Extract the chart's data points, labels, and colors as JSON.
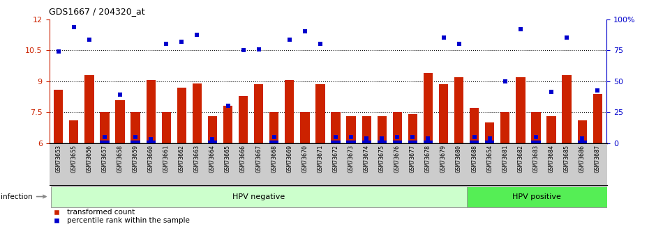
{
  "title": "GDS1667 / 204320_at",
  "samples": [
    "GSM73653",
    "GSM73655",
    "GSM73656",
    "GSM73657",
    "GSM73658",
    "GSM73659",
    "GSM73660",
    "GSM73661",
    "GSM73662",
    "GSM73663",
    "GSM73664",
    "GSM73665",
    "GSM73666",
    "GSM73667",
    "GSM73668",
    "GSM73669",
    "GSM73670",
    "GSM73671",
    "GSM73672",
    "GSM73673",
    "GSM73674",
    "GSM73675",
    "GSM73676",
    "GSM73677",
    "GSM73678",
    "GSM73679",
    "GSM73680",
    "GSM73688",
    "GSM73654",
    "GSM73681",
    "GSM73682",
    "GSM73683",
    "GSM73684",
    "GSM73685",
    "GSM73686",
    "GSM73687"
  ],
  "bar_values": [
    8.6,
    7.1,
    9.3,
    7.5,
    8.1,
    7.5,
    9.05,
    7.5,
    8.7,
    8.9,
    7.3,
    7.8,
    8.3,
    8.85,
    7.5,
    9.05,
    7.5,
    8.85,
    7.5,
    7.3,
    7.3,
    7.3,
    7.5,
    7.4,
    9.4,
    8.85,
    9.2,
    7.7,
    7.0,
    7.5,
    9.2,
    7.5,
    7.3,
    9.3,
    7.1,
    8.4
  ],
  "dot_values": [
    10.45,
    11.6,
    11.0,
    6.3,
    8.35,
    6.3,
    6.2,
    10.8,
    10.9,
    11.25,
    6.2,
    7.8,
    10.5,
    10.55,
    6.3,
    11.0,
    11.4,
    10.8,
    6.3,
    6.3,
    6.25,
    6.25,
    6.3,
    6.3,
    6.25,
    11.1,
    10.8,
    6.3,
    6.25,
    9.0,
    11.5,
    6.3,
    8.5,
    11.1,
    6.25,
    8.55
  ],
  "ylim_left": [
    6,
    12
  ],
  "yticks_left": [
    6,
    7.5,
    9,
    10.5,
    12
  ],
  "ytick_labels_left": [
    "6",
    "7.5",
    "9",
    "10.5",
    "12"
  ],
  "yticks_right": [
    0,
    25,
    50,
    75,
    100
  ],
  "ytick_labels_right": [
    "0",
    "25",
    "50",
    "75",
    "100%"
  ],
  "bar_color": "#cc2200",
  "dot_color": "#0000cc",
  "bar_bottom": 6.0,
  "hpv_neg_count": 27,
  "hpv_neg_label": "HPV negative",
  "hpv_pos_label": "HPV positive",
  "hpv_neg_color": "#ccffcc",
  "hpv_pos_color": "#55ee55",
  "infection_label": "infection",
  "infection_arrow_color": "#888888",
  "legend_bar_label": "transformed count",
  "legend_dot_label": "percentile rank within the sample",
  "dotted_lines": [
    7.5,
    9.0,
    10.5
  ],
  "xtick_bg_color": "#cccccc",
  "left_axis_color": "#cc2200",
  "right_axis_color": "#0000cc"
}
